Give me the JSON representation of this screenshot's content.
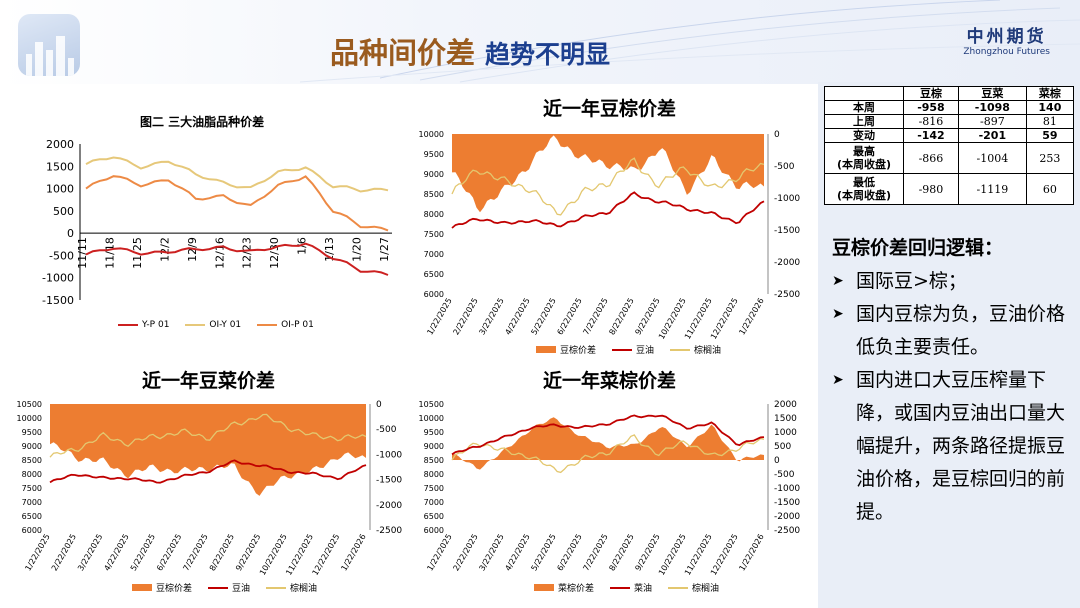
{
  "header": {
    "title_main": "品种间价差",
    "title_sub": "趋势不明显",
    "brand_cn": "中州期货",
    "brand_en": "Zhongzhou Futures"
  },
  "colors": {
    "title_brown": "#9a5b1f",
    "title_blue": "#1c3f8f",
    "spread_fill": "#ed7d31",
    "red_line": "#c00000",
    "khaki_line": "#e3c76f",
    "chart2_yp": "#cc2020",
    "chart2_oiy": "#e6c87a",
    "chart2_oip": "#ed8a45"
  },
  "stats": {
    "headers": [
      "",
      "豆棕",
      "豆菜",
      "菜棕"
    ],
    "rows": [
      {
        "label": "本周",
        "values": [
          "-958",
          "-1098",
          "140"
        ],
        "style": "b"
      },
      {
        "label": "上周",
        "values": [
          "-816",
          "-897",
          "81"
        ],
        "style": "r"
      },
      {
        "label": "变动",
        "values": [
          "-142",
          "-201",
          "59"
        ],
        "style": "b"
      },
      {
        "label": "最高\n(本周收盘)",
        "values": [
          "-866",
          "-1004",
          "253"
        ],
        "style": "r"
      },
      {
        "label": "最低\n(本周收盘)",
        "values": [
          "-980",
          "-1119",
          "60"
        ],
        "style": "r"
      }
    ]
  },
  "logic": {
    "heading": "豆棕价差回归逻辑：",
    "points": [
      "国际豆>棕；",
      "国内豆棕为负，豆油价格低负主要责任。",
      "国内进口大豆压榨量下降，或国内豆油出口量大幅提升，两条路径提振豆油价格，是豆棕回归的前提。"
    ]
  },
  "chart_data": [
    {
      "type": "line",
      "title": "图二 三大油脂品种价差",
      "x": [
        "11/11",
        "11/18",
        "11/25",
        "12/2",
        "12/9",
        "12/16",
        "12/23",
        "12/30",
        "1/6",
        "1/13",
        "1/20",
        "1/27"
      ],
      "ylim": [
        -1500,
        2000
      ],
      "yticks": [
        -1500,
        -1000,
        -500,
        0,
        500,
        1000,
        1500,
        2000
      ],
      "legend": "bottom",
      "series": [
        {
          "name": "Y-P 01",
          "values": [
            -480,
            -350,
            -430,
            -420,
            -380,
            -300,
            -420,
            -330,
            -210,
            -560,
            -850,
            -900
          ]
        },
        {
          "name": "OI-Y 01",
          "values": [
            1550,
            1700,
            1500,
            1620,
            1300,
            1150,
            1000,
            1350,
            1500,
            1050,
            950,
            1000
          ]
        },
        {
          "name": "OI-P 01",
          "values": [
            1000,
            1280,
            1100,
            1200,
            750,
            850,
            600,
            1050,
            1300,
            500,
            150,
            100
          ]
        }
      ]
    },
    {
      "type": "area",
      "title": "近一年豆棕价差",
      "x": [
        "1/22/2025",
        "2/22/2025",
        "3/22/2025",
        "4/22/2025",
        "5/22/2025",
        "6/22/2025",
        "7/22/2025",
        "8/22/2025",
        "9/22/2025",
        "10/22/2025",
        "11/22/2025",
        "12/22/2025",
        "1/22/2026"
      ],
      "ylim_left": [
        6000,
        10000
      ],
      "yticks_left": [
        6000,
        6500,
        7000,
        7500,
        8000,
        8500,
        9000,
        9500,
        10000
      ],
      "ylim_right": [
        -2500,
        0
      ],
      "yticks_right": [
        -2500,
        -2000,
        -1500,
        -1000,
        -500,
        0
      ],
      "legend": "bottom",
      "series": [
        {
          "name": "豆棕价差",
          "axis": "right",
          "values": [
            -600,
            -1150,
            -900,
            -450,
            -50,
            -400,
            -450,
            -600,
            -200,
            -900,
            -400,
            -800,
            -850
          ]
        },
        {
          "name": "豆油",
          "axis": "left",
          "values": [
            7650,
            7900,
            7750,
            7850,
            7700,
            7900,
            8050,
            8500,
            8300,
            8150,
            8000,
            7800,
            8300
          ]
        },
        {
          "name": "棕榈油",
          "axis": "left",
          "values": [
            8500,
            9150,
            8800,
            8650,
            8000,
            8500,
            8800,
            9300,
            8700,
            9200,
            8600,
            8950,
            9200
          ]
        }
      ]
    },
    {
      "type": "area",
      "title": "近一年豆菜价差",
      "x": [
        "1/22/2025",
        "2/22/2025",
        "3/22/2025",
        "4/22/2025",
        "5/22/2025",
        "6/22/2025",
        "7/22/2025",
        "8/22/2025",
        "9/22/2025",
        "10/22/2025",
        "11/22/2025",
        "12/22/2025",
        "1/22/2026"
      ],
      "ylim_left": [
        6000,
        10500
      ],
      "yticks_left": [
        6000,
        6500,
        7000,
        7500,
        8000,
        8500,
        9000,
        9500,
        10000,
        10500
      ],
      "ylim_right": [
        -2500,
        0
      ],
      "yticks_right": [
        -2500,
        -2000,
        -1500,
        -1000,
        -500,
        0
      ],
      "legend": "bottom",
      "series": [
        {
          "name": "豆棕价差",
          "axis": "right",
          "values": [
            -800,
            -1050,
            -1150,
            -1400,
            -1250,
            -1350,
            -1250,
            -1250,
            -1800,
            -1400,
            -1350,
            -1000,
            -1100
          ]
        },
        {
          "name": "豆油",
          "axis": "left",
          "values": [
            7700,
            8000,
            7850,
            7850,
            7700,
            7900,
            8100,
            8450,
            8300,
            8100,
            8000,
            7850,
            8300
          ]
        },
        {
          "name": "棕榈油",
          "axis": "left",
          "values": [
            8600,
            8900,
            9350,
            9100,
            9350,
            9500,
            9300,
            9750,
            10100,
            9700,
            9350,
            9300,
            9300
          ]
        }
      ]
    },
    {
      "type": "area",
      "title": "近一年菜棕价差",
      "x": [
        "1/22/2025",
        "2/22/2025",
        "3/22/2025",
        "4/22/2025",
        "5/22/2025",
        "6/22/2025",
        "7/22/2025",
        "8/22/2025",
        "9/22/2025",
        "10/22/2025",
        "11/22/2025",
        "12/22/2025",
        "1/22/2026"
      ],
      "ylim_left": [
        6000,
        10500
      ],
      "yticks_left": [
        6000,
        6500,
        7000,
        7500,
        8000,
        8500,
        9000,
        9500,
        10000,
        10500
      ],
      "ylim_right": [
        -2500,
        2000
      ],
      "yticks_right": [
        -2500,
        -2000,
        -1500,
        -1000,
        -500,
        0,
        500,
        1000,
        1500,
        2000
      ],
      "legend": "bottom",
      "series": [
        {
          "name": "菜棕价差",
          "axis": "right",
          "values": [
            200,
            -300,
            300,
            1100,
            1500,
            800,
            500,
            500,
            1200,
            500,
            1200,
            0,
            150
          ]
        },
        {
          "name": "菜油",
          "axis": "left",
          "values": [
            8700,
            9000,
            9300,
            9650,
            9750,
            9650,
            9800,
            10050,
            10100,
            9650,
            9800,
            9050,
            9300
          ]
        },
        {
          "name": "棕榈油",
          "axis": "left",
          "values": [
            8500,
            9150,
            8800,
            8650,
            8100,
            8500,
            8800,
            9300,
            8700,
            9200,
            8600,
            8950,
            9200
          ]
        }
      ]
    }
  ]
}
